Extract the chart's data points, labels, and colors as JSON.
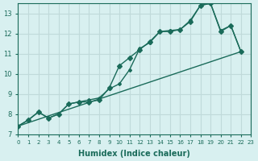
{
  "xlabel": "Humidex (Indice chaleur)",
  "ylabel": "",
  "background_color": "#d8f0f0",
  "grid_color": "#c0dada",
  "line_color": "#1a6b5a",
  "xlim": [
    0,
    23
  ],
  "ylim": [
    7,
    13.5
  ],
  "xticks": [
    0,
    1,
    2,
    3,
    4,
    5,
    6,
    7,
    8,
    9,
    10,
    11,
    12,
    13,
    14,
    15,
    16,
    17,
    18,
    19,
    20,
    21,
    22,
    23
  ],
  "yticks": [
    7,
    8,
    9,
    10,
    11,
    12,
    13
  ],
  "series": [
    {
      "x": [
        0,
        1,
        2,
        3,
        4,
        5,
        6,
        7,
        8,
        9,
        10,
        11,
        12,
        13,
        14,
        15,
        16,
        17,
        18,
        19,
        20,
        21,
        22
      ],
      "y": [
        7.4,
        7.7,
        8.1,
        7.8,
        8.0,
        8.5,
        8.6,
        8.6,
        8.7,
        9.3,
        10.4,
        10.8,
        11.2,
        11.6,
        12.1,
        12.1,
        12.2,
        12.6,
        13.4,
        13.5,
        12.1,
        12.4,
        11.1
      ]
    },
    {
      "x": [
        0,
        1,
        2,
        3,
        4,
        5,
        6,
        7,
        8,
        9,
        10,
        11,
        12,
        13,
        14,
        15,
        16,
        17,
        18,
        19,
        20,
        21,
        22
      ],
      "y": [
        7.4,
        7.7,
        8.1,
        7.8,
        8.0,
        8.5,
        8.6,
        8.7,
        8.8,
        9.25,
        9.5,
        10.2,
        11.25,
        11.55,
        12.1,
        12.15,
        12.2,
        12.65,
        13.4,
        13.5,
        12.15,
        12.4,
        11.1
      ]
    },
    {
      "x": [
        0,
        22
      ],
      "y": [
        7.4,
        11.1
      ]
    }
  ]
}
